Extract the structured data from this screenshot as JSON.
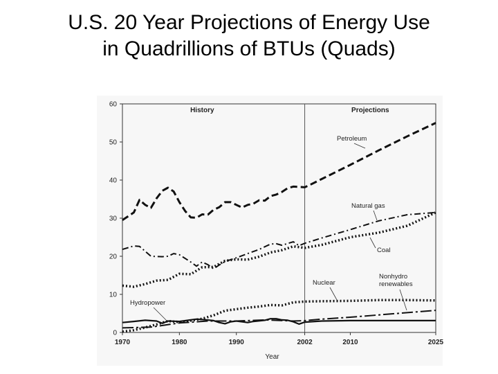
{
  "slide": {
    "title_line1": "U.S. 20 Year Projections of Energy Use",
    "title_line2": "in Quadrillions of BTUs (Quads)"
  },
  "chart_data": {
    "type": "line",
    "xlabel": "Year",
    "ylabel": "",
    "xlim": [
      1970,
      2025
    ],
    "ylim": [
      0,
      60
    ],
    "x_ticks": [
      1970,
      1980,
      1990,
      2002,
      2010,
      2025
    ],
    "y_ticks": [
      0,
      10,
      20,
      30,
      40,
      50,
      60
    ],
    "grid": false,
    "divider_year": 2002,
    "region_labels": {
      "history": "History",
      "projections": "Projections"
    },
    "series": [
      {
        "name": "Petroleum",
        "style": "dash",
        "points": [
          [
            1970,
            29.5
          ],
          [
            1972,
            31.5
          ],
          [
            1973,
            34.8
          ],
          [
            1974,
            33.5
          ],
          [
            1975,
            32.7
          ],
          [
            1976,
            35.2
          ],
          [
            1977,
            37.2
          ],
          [
            1978,
            38.0
          ],
          [
            1979,
            37.0
          ],
          [
            1980,
            34.2
          ],
          [
            1981,
            31.9
          ],
          [
            1982,
            30.2
          ],
          [
            1983,
            30.1
          ],
          [
            1984,
            31.0
          ],
          [
            1985,
            30.9
          ],
          [
            1986,
            32.2
          ],
          [
            1987,
            32.9
          ],
          [
            1988,
            34.2
          ],
          [
            1989,
            34.2
          ],
          [
            1990,
            33.5
          ],
          [
            1991,
            32.8
          ],
          [
            1992,
            33.5
          ],
          [
            1993,
            33.8
          ],
          [
            1994,
            34.7
          ],
          [
            1995,
            34.6
          ],
          [
            1996,
            35.8
          ],
          [
            1997,
            36.2
          ],
          [
            1998,
            36.9
          ],
          [
            1999,
            37.9
          ],
          [
            2000,
            38.3
          ],
          [
            2001,
            38.2
          ],
          [
            2002,
            38.1
          ],
          [
            2003,
            38.8
          ],
          [
            2005,
            40.3
          ],
          [
            2010,
            44.0
          ],
          [
            2015,
            47.8
          ],
          [
            2020,
            51.5
          ],
          [
            2025,
            55.0
          ]
        ]
      },
      {
        "name": "Natural gas",
        "style": "dashdot",
        "points": [
          [
            1970,
            21.8
          ],
          [
            1972,
            22.7
          ],
          [
            1973,
            22.6
          ],
          [
            1975,
            20.0
          ],
          [
            1977,
            19.9
          ],
          [
            1978,
            20.0
          ],
          [
            1979,
            20.7
          ],
          [
            1980,
            20.4
          ],
          [
            1982,
            18.5
          ],
          [
            1983,
            17.4
          ],
          [
            1984,
            18.5
          ],
          [
            1985,
            17.8
          ],
          [
            1986,
            16.7
          ],
          [
            1987,
            17.7
          ],
          [
            1988,
            18.6
          ],
          [
            1990,
            19.6
          ],
          [
            1992,
            20.7
          ],
          [
            1994,
            21.8
          ],
          [
            1996,
            23.2
          ],
          [
            1997,
            23.3
          ],
          [
            1998,
            22.9
          ],
          [
            2000,
            23.8
          ],
          [
            2001,
            22.8
          ],
          [
            2002,
            23.4
          ],
          [
            2005,
            24.8
          ],
          [
            2010,
            27.0
          ],
          [
            2015,
            29.3
          ],
          [
            2020,
            30.9
          ],
          [
            2025,
            31.5
          ]
        ]
      },
      {
        "name": "Coal",
        "style": "dot",
        "points": [
          [
            1970,
            12.3
          ],
          [
            1972,
            12.0
          ],
          [
            1974,
            12.7
          ],
          [
            1976,
            13.6
          ],
          [
            1978,
            13.8
          ],
          [
            1980,
            15.4
          ],
          [
            1982,
            15.3
          ],
          [
            1984,
            17.1
          ],
          [
            1986,
            17.2
          ],
          [
            1988,
            18.8
          ],
          [
            1990,
            19.2
          ],
          [
            1992,
            19.1
          ],
          [
            1994,
            19.9
          ],
          [
            1996,
            21.0
          ],
          [
            1998,
            21.6
          ],
          [
            2000,
            22.6
          ],
          [
            2002,
            22.2
          ],
          [
            2005,
            23.0
          ],
          [
            2010,
            25.0
          ],
          [
            2015,
            26.2
          ],
          [
            2020,
            28.0
          ],
          [
            2025,
            31.5
          ]
        ]
      },
      {
        "name": "Nuclear",
        "style": "dot",
        "points": [
          [
            1970,
            0.2
          ],
          [
            1972,
            0.6
          ],
          [
            1974,
            1.3
          ],
          [
            1976,
            2.1
          ],
          [
            1978,
            3.0
          ],
          [
            1980,
            2.7
          ],
          [
            1982,
            3.1
          ],
          [
            1984,
            3.6
          ],
          [
            1986,
            4.5
          ],
          [
            1988,
            5.7
          ],
          [
            1990,
            6.1
          ],
          [
            1992,
            6.5
          ],
          [
            1994,
            6.8
          ],
          [
            1996,
            7.2
          ],
          [
            1998,
            7.1
          ],
          [
            2000,
            7.9
          ],
          [
            2002,
            8.1
          ],
          [
            2005,
            8.2
          ],
          [
            2010,
            8.3
          ],
          [
            2015,
            8.5
          ],
          [
            2020,
            8.5
          ],
          [
            2025,
            8.4
          ]
        ]
      },
      {
        "name": "Nonhydro renewables",
        "style": "longdash",
        "points": [
          [
            1970,
            1.2
          ],
          [
            1975,
            1.4
          ],
          [
            1980,
            2.5
          ],
          [
            1985,
            3.0
          ],
          [
            1990,
            3.0
          ],
          [
            1995,
            3.3
          ],
          [
            2000,
            3.0
          ],
          [
            2002,
            3.1
          ],
          [
            2005,
            3.5
          ],
          [
            2010,
            4.0
          ],
          [
            2015,
            4.6
          ],
          [
            2020,
            5.2
          ],
          [
            2025,
            5.8
          ]
        ]
      },
      {
        "name": "Hydropower",
        "style": "solid",
        "points": [
          [
            1970,
            2.6
          ],
          [
            1972,
            2.9
          ],
          [
            1974,
            3.2
          ],
          [
            1976,
            3.0
          ],
          [
            1977,
            2.4
          ],
          [
            1978,
            3.0
          ],
          [
            1980,
            2.9
          ],
          [
            1982,
            3.3
          ],
          [
            1983,
            3.5
          ],
          [
            1984,
            3.4
          ],
          [
            1986,
            3.1
          ],
          [
            1987,
            2.6
          ],
          [
            1988,
            2.3
          ],
          [
            1989,
            2.8
          ],
          [
            1990,
            3.0
          ],
          [
            1992,
            2.6
          ],
          [
            1993,
            2.9
          ],
          [
            1995,
            3.2
          ],
          [
            1996,
            3.6
          ],
          [
            1997,
            3.6
          ],
          [
            1998,
            3.3
          ],
          [
            1999,
            3.2
          ],
          [
            2000,
            2.8
          ],
          [
            2001,
            2.2
          ],
          [
            2002,
            2.7
          ],
          [
            2005,
            3.0
          ],
          [
            2010,
            3.1
          ],
          [
            2015,
            3.1
          ],
          [
            2020,
            3.1
          ],
          [
            2025,
            3.1
          ]
        ]
      }
    ]
  }
}
